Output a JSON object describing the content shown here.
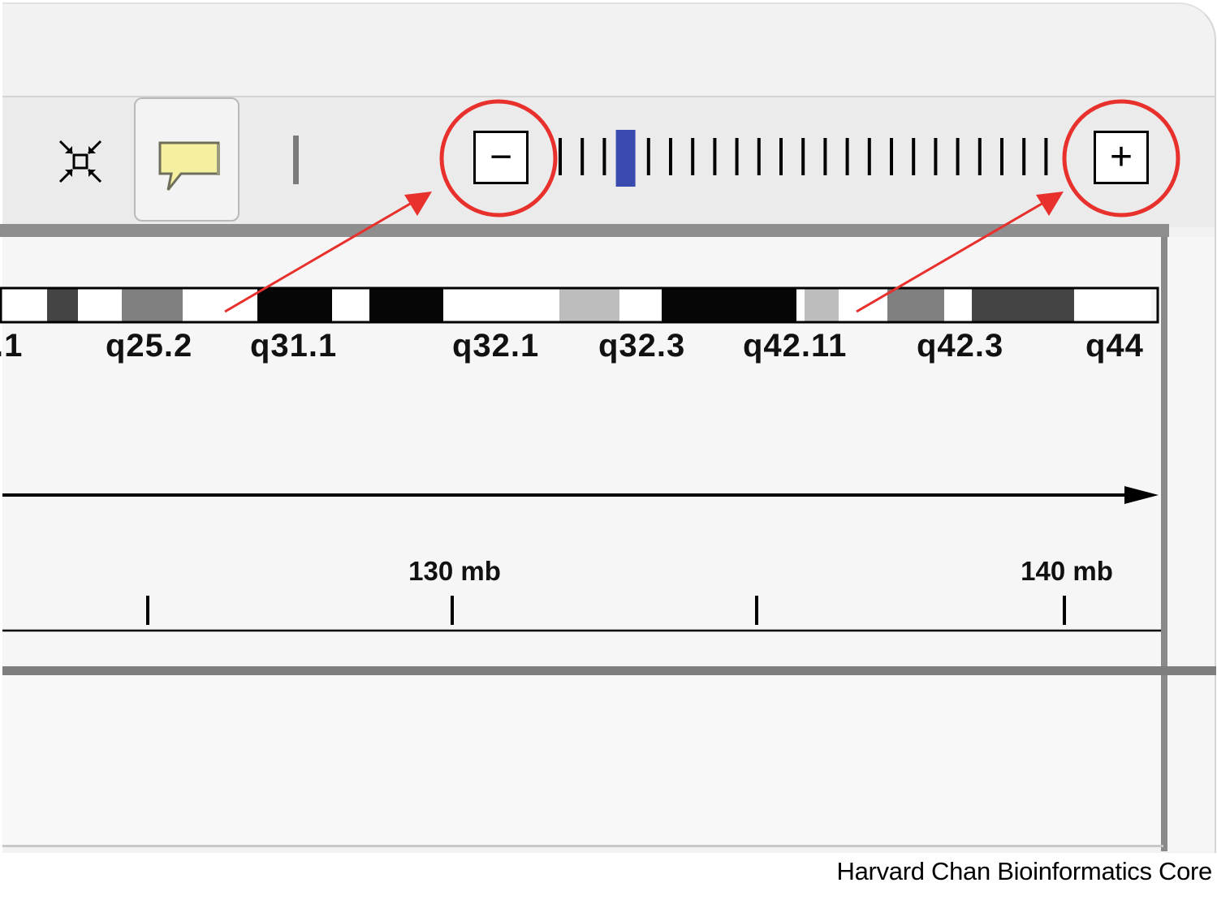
{
  "toolbar": {
    "resize_icon": "resize-to-window-icon",
    "popup_icon": "popup-text-behavior-icon",
    "zoom_out_label": "−",
    "zoom_in_label": "+",
    "zoom_level_index": 3,
    "zoom_tick_count": 23,
    "slider_thumb_color": "#3a4bb0"
  },
  "ideogram": {
    "bands": [
      {
        "stain": "white",
        "color": "#ffffff"
      },
      {
        "stain": "gpos75",
        "color": "#444444"
      },
      {
        "stain": "white",
        "color": "#ffffff"
      },
      {
        "stain": "gpos50",
        "color": "#808080"
      },
      {
        "stain": "white",
        "color": "#ffffff"
      },
      {
        "stain": "gpos100",
        "color": "#060606"
      },
      {
        "stain": "white",
        "color": "#ffffff"
      },
      {
        "stain": "gpos100",
        "color": "#060606"
      },
      {
        "stain": "white",
        "color": "#ffffff"
      },
      {
        "stain": "gpos25",
        "color": "#bdbdbd"
      },
      {
        "stain": "white",
        "color": "#ffffff"
      },
      {
        "stain": "gpos100",
        "color": "#060606"
      },
      {
        "stain": "white",
        "color": "#ffffff"
      },
      {
        "stain": "gpos25",
        "color": "#bdbdbd"
      },
      {
        "stain": "white",
        "color": "#ffffff"
      },
      {
        "stain": "gpos50",
        "color": "#808080"
      },
      {
        "stain": "white",
        "color": "#ffffff"
      },
      {
        "stain": "gpos75",
        "color": "#444444"
      },
      {
        "stain": "white",
        "color": "#ffffff"
      }
    ],
    "labels": [
      ".1",
      "q25.2",
      "q31.1",
      "q32.1",
      "q32.3",
      "q42.11",
      "q42.3",
      "q44"
    ]
  },
  "ruler": {
    "labels": [
      "130 mb",
      "140 mb"
    ]
  },
  "annotation": {
    "color": "#e8302c"
  },
  "footer": {
    "credit": "Harvard Chan Bioinformatics Core"
  }
}
